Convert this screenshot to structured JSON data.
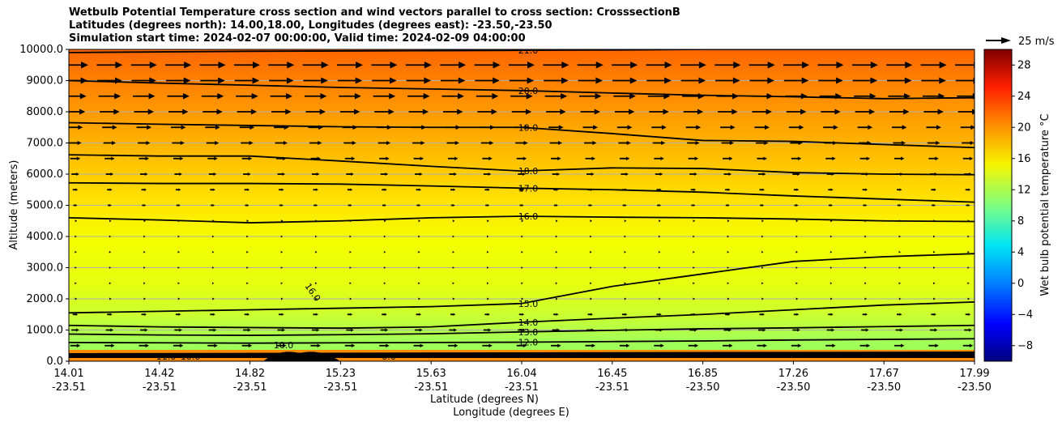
{
  "titles": {
    "line1": "Wetbulb Potential Temperature cross section and wind vectors parallel to cross section: CrosssectionB",
    "line2": "Latitudes (degrees north): 14.00,18.00, Longitudes (degrees east): -23.50,-23.50",
    "line3": "Simulation start time: 2024-02-07 00:00:00, Valid time: 2024-02-09 04:00:00"
  },
  "chart_data": {
    "type": "contour",
    "ylabel": "Altitude (meters)",
    "xlabel_lat": "Latitude (degrees N)",
    "xlabel_lon": "Longitude (degrees E)",
    "ylim": [
      0,
      10000
    ],
    "yticks": [
      "0.0",
      "1000.0",
      "2000.0",
      "3000.0",
      "4000.0",
      "5000.0",
      "6000.0",
      "7000.0",
      "8000.0",
      "9000.0",
      "10000.0"
    ],
    "xticks": [
      {
        "lat": "14.01",
        "lon": "-23.51"
      },
      {
        "lat": "14.42",
        "lon": "-23.51"
      },
      {
        "lat": "14.82",
        "lon": "-23.51"
      },
      {
        "lat": "15.23",
        "lon": "-23.51"
      },
      {
        "lat": "15.63",
        "lon": "-23.51"
      },
      {
        "lat": "16.04",
        "lon": "-23.51"
      },
      {
        "lat": "16.45",
        "lon": "-23.51"
      },
      {
        "lat": "16.85",
        "lon": "-23.50"
      },
      {
        "lat": "17.26",
        "lon": "-23.50"
      },
      {
        "lat": "17.67",
        "lon": "-23.50"
      },
      {
        "lat": "17.99",
        "lon": "-23.50"
      }
    ],
    "grid": true,
    "colorbar": {
      "label": "Wet bulb potential temperature °C",
      "range": [
        -10,
        30
      ],
      "ticks": [
        "−8",
        "−4",
        "0",
        "4",
        "8",
        "12",
        "16",
        "20",
        "24",
        "28"
      ],
      "colormap": "jet"
    },
    "quiver_key": {
      "label": "25 m/s",
      "speed": 25
    },
    "contours": [
      {
        "label": "21.0",
        "y": [
          9900,
          9920,
          9940,
          9950,
          9960,
          9970,
          9980,
          10000,
          10000,
          10000,
          10000
        ]
      },
      {
        "label": "20.0",
        "y": [
          9000,
          8920,
          8850,
          8780,
          8730,
          8680,
          8600,
          8530,
          8480,
          8420,
          8450
        ]
      },
      {
        "label": "19.0",
        "y": [
          7650,
          7600,
          7560,
          7520,
          7500,
          7500,
          7300,
          7080,
          7050,
          6950,
          6850
        ]
      },
      {
        "label": "18.0",
        "y": [
          6620,
          6580,
          6580,
          6420,
          6250,
          6100,
          6200,
          6180,
          6050,
          6000,
          5980
        ]
      },
      {
        "label": "17.0",
        "y": [
          5720,
          5700,
          5700,
          5680,
          5620,
          5550,
          5500,
          5420,
          5300,
          5200,
          5100
        ]
      },
      {
        "label": "16.0",
        "y": [
          4600,
          4530,
          4440,
          4500,
          4600,
          4650,
          4620,
          4600,
          4560,
          4500,
          4480
        ]
      },
      {
        "label": "15.0",
        "y": [
          1550,
          1600,
          1650,
          1700,
          1750,
          1850,
          2400,
          2800,
          3200,
          3350,
          3450
        ]
      },
      {
        "label": "14.0",
        "y": [
          1150,
          1100,
          1080,
          1060,
          1100,
          1250,
          1380,
          1500,
          1650,
          1800,
          1900
        ]
      },
      {
        "label": "13.0",
        "y": [
          870,
          840,
          830,
          850,
          880,
          940,
          990,
          1040,
          1070,
          1110,
          1150
        ]
      },
      {
        "label": "12.0",
        "y": [
          600,
          590,
          580,
          590,
          600,
          610,
          630,
          650,
          680,
          700,
          720
        ]
      }
    ],
    "extra_contour_labels": [
      "16.0",
      "11.0",
      "10.0",
      "-0.0",
      "10.0"
    ]
  }
}
